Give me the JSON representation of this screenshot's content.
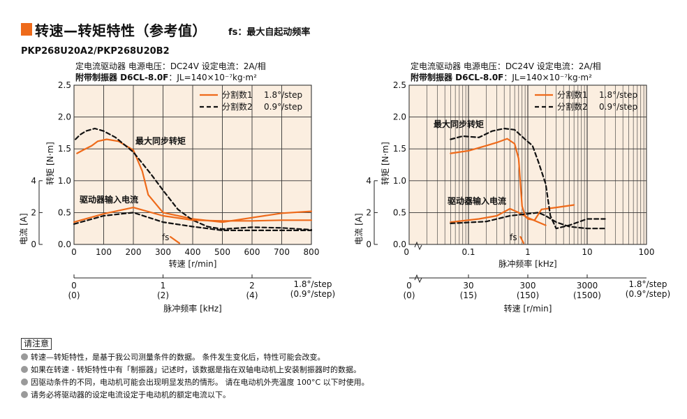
{
  "header": {
    "title": "转速—转矩特性（参考值）",
    "subtitle": "fs：最大自起动频率",
    "model": "PKP268U20A2/PKP268U20B2"
  },
  "conditions": {
    "line1": "定电流驱动器   电源电压：DC24V   设定电流：2A/相",
    "line2_bold": "附带制振器 D6CL-8.0F",
    "line2_rest": "：JL=140×10⁻⁷kg·m²"
  },
  "legend": {
    "s1_label": "分割数1",
    "s1_step": "1.8°/step",
    "s2_label": "分割数2",
    "s2_step": "0.9°/step"
  },
  "annotations": {
    "max_sync": "最大同步转矩",
    "driver_input": "驱动器输入电流",
    "fs": "fs"
  },
  "axes": {
    "torque_label": "转矩 [N·m]",
    "current_label": "电流 [A]",
    "left_x_label": "转速 [r/min]",
    "left_x2_label": "脉冲频率 [kHz]",
    "right_x_label": "脉冲频率 [kHz]",
    "right_x2_label": "转速 [r/min]",
    "step1": "1.8°/step",
    "step2": "(0.9°/step)"
  },
  "notes": {
    "head": "请注意",
    "items": [
      "转速—转矩特性，是基于我公司测量条件的数据。 条件发生变化后，特性可能会改变。",
      "如果在转速 - 转矩特性中有「制振器」记述时，该数据是指在双轴电动机上安装制振器时的数据。",
      "因驱动条件的不同，电动机可能会出现明显发热的情形。 请在电动机外壳温度 100°C 以下时使用。",
      "请务必将驱动器的设定电流设定于电动机的额定电流以下。"
    ]
  },
  "colors": {
    "panel_bg": "#fbeee0",
    "series1": "#ee6a1a",
    "series2": "#111111",
    "accent": "#ee6a1a"
  },
  "chart_data": [
    {
      "type": "line",
      "x_scale": "linear",
      "x_axis_name": "转速 [r/min]",
      "xlim": [
        0,
        800
      ],
      "x_ticks": [
        0,
        100,
        200,
        300,
        400,
        500,
        600,
        700,
        800
      ],
      "x2_axis_name": "脉冲频率 [kHz]",
      "x2_ticks": [
        {
          "x": 0,
          "label": "0",
          "sub": "(0)"
        },
        {
          "x": 300,
          "label": "1",
          "sub": "(2)"
        },
        {
          "x": 600,
          "label": "2",
          "sub": "(4)"
        }
      ],
      "y_axis_name": "转矩 [N·m]",
      "ylim": [
        0,
        2.5
      ],
      "y_ticks": [
        0,
        0.5,
        1.0,
        1.5,
        2.0,
        2.5
      ],
      "y2_axis_name": "电流 [A]",
      "y2_ticks": [
        0,
        2,
        4
      ],
      "series": [
        {
          "name": "分割数1",
          "kind": "torque",
          "style": "solid",
          "points": [
            [
              10,
              1.43
            ],
            [
              30,
              1.48
            ],
            [
              60,
              1.55
            ],
            [
              80,
              1.62
            ],
            [
              110,
              1.65
            ],
            [
              150,
              1.62
            ],
            [
              200,
              1.48
            ],
            [
              230,
              1.15
            ],
            [
              250,
              0.78
            ],
            [
              300,
              0.5
            ],
            [
              400,
              0.4
            ],
            [
              500,
              0.35
            ],
            [
              600,
              0.42
            ],
            [
              700,
              0.49
            ],
            [
              800,
              0.52
            ]
          ]
        },
        {
          "name": "分割数2",
          "kind": "torque",
          "style": "dashed",
          "points": [
            [
              5,
              1.65
            ],
            [
              20,
              1.72
            ],
            [
              40,
              1.78
            ],
            [
              70,
              1.82
            ],
            [
              100,
              1.78
            ],
            [
              140,
              1.68
            ],
            [
              200,
              1.45
            ],
            [
              260,
              1.1
            ],
            [
              300,
              0.85
            ],
            [
              350,
              0.55
            ],
            [
              400,
              0.38
            ],
            [
              450,
              0.28
            ],
            [
              500,
              0.24
            ],
            [
              600,
              0.27
            ],
            [
              700,
              0.26
            ],
            [
              800,
              0.23
            ]
          ]
        },
        {
          "name": "分割数1",
          "kind": "current",
          "style": "solid",
          "points": [
            [
              0,
              0.35
            ],
            [
              100,
              0.48
            ],
            [
              200,
              0.58
            ],
            [
              300,
              0.45
            ],
            [
              400,
              0.38
            ],
            [
              500,
              0.37
            ],
            [
              600,
              0.37
            ],
            [
              700,
              0.38
            ],
            [
              800,
              0.38
            ]
          ]
        },
        {
          "name": "分割数2",
          "kind": "current",
          "style": "dashed",
          "points": [
            [
              0,
              0.32
            ],
            [
              100,
              0.45
            ],
            [
              200,
              0.5
            ],
            [
              300,
              0.35
            ],
            [
              400,
              0.28
            ],
            [
              500,
              0.22
            ],
            [
              600,
              0.22
            ],
            [
              700,
              0.22
            ],
            [
              800,
              0.22
            ]
          ]
        },
        {
          "name": "分割数1",
          "kind": "fs",
          "style": "solid",
          "points": [
            [
              325,
              0.12
            ],
            [
              355,
              0.02
            ]
          ]
        }
      ]
    },
    {
      "type": "line",
      "x_scale": "log",
      "x_axis_name": "脉冲频率 [kHz]",
      "xlim": [
        0.01,
        100
      ],
      "x_ticks": [
        0.1,
        1,
        10,
        100
      ],
      "x_tick_labels": [
        "0.1",
        "1",
        "10",
        "100"
      ],
      "x2_axis_name": "转速 [r/min]",
      "x2_ticks": [
        {
          "x": 0.1,
          "label": "30",
          "sub": "(15)"
        },
        {
          "x": 1,
          "label": "300",
          "sub": "(150)"
        },
        {
          "x": 10,
          "label": "3000",
          "sub": "(1500)"
        }
      ],
      "y_axis_name": "转矩 [N·m]",
      "ylim": [
        0,
        2.5
      ],
      "y_ticks": [
        0,
        0.5,
        1.0,
        1.5,
        2.0,
        2.5
      ],
      "y2_axis_name": "电流 [A]",
      "y2_ticks": [
        0,
        2,
        4
      ],
      "series": [
        {
          "name": "分割数1",
          "kind": "torque",
          "style": "solid",
          "points": [
            [
              0.05,
              1.43
            ],
            [
              0.1,
              1.47
            ],
            [
              0.2,
              1.55
            ],
            [
              0.3,
              1.6
            ],
            [
              0.45,
              1.66
            ],
            [
              0.6,
              1.58
            ],
            [
              0.7,
              1.35
            ],
            [
              0.8,
              0.6
            ],
            [
              0.9,
              0.45
            ],
            [
              1.0,
              0.4
            ],
            [
              1.3,
              0.38
            ],
            [
              1.7,
              0.55
            ],
            [
              3,
              0.58
            ],
            [
              6,
              0.62
            ]
          ]
        },
        {
          "name": "分割数2",
          "kind": "torque",
          "style": "dashed",
          "points": [
            [
              0.05,
              1.65
            ],
            [
              0.08,
              1.7
            ],
            [
              0.15,
              1.68
            ],
            [
              0.25,
              1.78
            ],
            [
              0.4,
              1.82
            ],
            [
              0.6,
              1.8
            ],
            [
              0.9,
              1.65
            ],
            [
              1.2,
              1.55
            ],
            [
              1.5,
              1.3
            ],
            [
              2.0,
              0.95
            ],
            [
              2.4,
              0.45
            ],
            [
              3,
              0.25
            ],
            [
              5,
              0.3
            ],
            [
              10,
              0.4
            ],
            [
              20,
              0.4
            ]
          ]
        },
        {
          "name": "分割数1",
          "kind": "current",
          "style": "solid",
          "points": [
            [
              0.05,
              0.35
            ],
            [
              0.15,
              0.4
            ],
            [
              0.3,
              0.45
            ],
            [
              0.5,
              0.56
            ],
            [
              0.7,
              0.5
            ],
            [
              1.0,
              0.42
            ],
            [
              1.5,
              0.35
            ],
            [
              2,
              0.3
            ]
          ]
        },
        {
          "name": "分割数2",
          "kind": "current",
          "style": "dashed",
          "points": [
            [
              0.05,
              0.33
            ],
            [
              0.2,
              0.36
            ],
            [
              0.5,
              0.45
            ],
            [
              1,
              0.48
            ],
            [
              1.5,
              0.5
            ],
            [
              2,
              0.45
            ],
            [
              3,
              0.35
            ],
            [
              5,
              0.28
            ],
            [
              10,
              0.25
            ],
            [
              20,
              0.25
            ]
          ]
        },
        {
          "name": "分割数1",
          "kind": "fs",
          "style": "solid",
          "points": [
            [
              0.75,
              0.12
            ],
            [
              0.85,
              0.02
            ]
          ]
        }
      ]
    }
  ]
}
